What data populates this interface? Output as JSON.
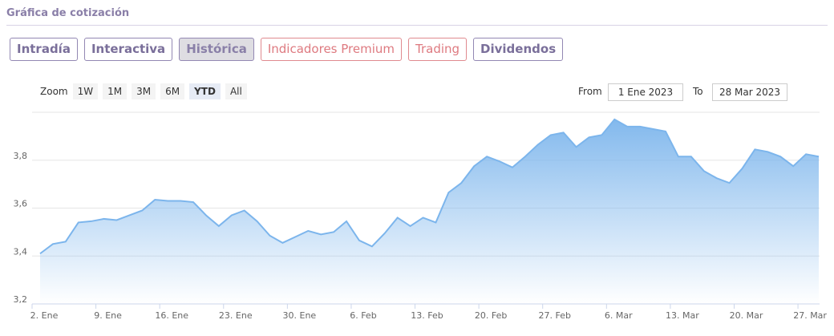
{
  "header": {
    "title": "Gráfica de cotización"
  },
  "tabs": [
    "Intradía",
    "Interactiva",
    "Histórica",
    "Indicadores Premium",
    "Trading",
    "Dividendos"
  ],
  "zoom": {
    "label": "Zoom",
    "buttons": [
      "1W",
      "1M",
      "3M",
      "6M",
      "YTD",
      "All"
    ]
  },
  "range": {
    "from_label": "From",
    "from": "1 Ene 2023",
    "to_label": "To",
    "to": "28 Mar 2023"
  },
  "chart_data": {
    "type": "area",
    "categories": [
      "2. Ene",
      null,
      null,
      null,
      null,
      "9. Ene",
      null,
      null,
      null,
      null,
      "16. Ene",
      null,
      null,
      null,
      null,
      "23. Ene",
      null,
      null,
      null,
      null,
      "30. Ene",
      null,
      null,
      null,
      null,
      "6. Feb",
      null,
      null,
      null,
      null,
      "13. Feb",
      null,
      null,
      null,
      null,
      "20. Feb",
      null,
      null,
      null,
      null,
      "27. Feb",
      null,
      null,
      null,
      null,
      "6. Mar",
      null,
      null,
      null,
      null,
      "13. Mar",
      null,
      null,
      null,
      null,
      "20. Mar",
      null,
      null,
      null,
      null,
      "27. Mar",
      null
    ],
    "series": [
      {
        "color": "#7cb5ec",
        "values": [
          3.41,
          3.45,
          3.46,
          3.54,
          3.545,
          3.555,
          3.55,
          3.57,
          3.59,
          3.635,
          3.63,
          3.63,
          3.625,
          3.57,
          3.525,
          3.57,
          3.59,
          3.545,
          3.485,
          3.455,
          3.48,
          3.505,
          3.49,
          3.5,
          3.545,
          3.465,
          3.44,
          3.495,
          3.56,
          3.525,
          3.56,
          3.54,
          3.665,
          3.705,
          3.775,
          3.815,
          3.795,
          3.77,
          3.815,
          3.865,
          3.905,
          3.915,
          3.855,
          3.895,
          3.905,
          3.97,
          3.94,
          3.94,
          3.93,
          3.92,
          3.815,
          3.815,
          3.755,
          3.725,
          3.705,
          3.765,
          3.845,
          3.835,
          3.815,
          3.775,
          3.825,
          3.815
        ]
      }
    ],
    "ylim": [
      3.2,
      4.0
    ],
    "yticks": [
      {
        "value": 3.2,
        "label": "3,2"
      },
      {
        "value": 3.4,
        "label": "3,4"
      },
      {
        "value": 3.6,
        "label": "3,6"
      },
      {
        "value": 3.8,
        "label": "3,8"
      }
    ],
    "grid": true
  }
}
